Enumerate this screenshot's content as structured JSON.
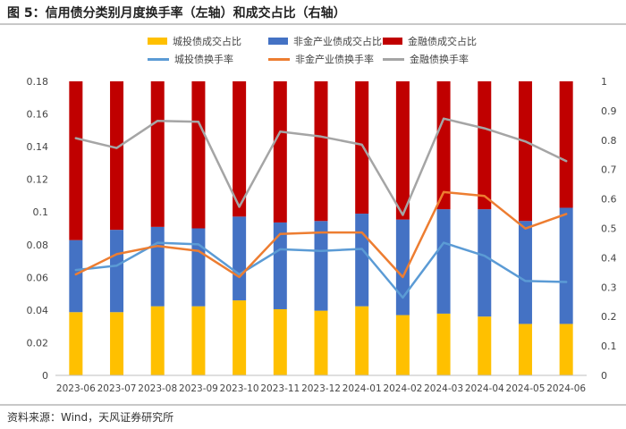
{
  "header": {
    "title": "图 5：信用债分类别月度换手率（左轴）和成交占比（右轴）"
  },
  "footer": {
    "source": "资料来源：Wind，天风证券研究所"
  },
  "colors": {
    "chengtou_bar": "#FFC000",
    "feijinrong_bar": "#4472C4",
    "jinrong_bar": "#C00000",
    "chengtou_line": "#5B9BD5",
    "feijinrong_line": "#ED7D31",
    "jinrong_line": "#A5A5A5"
  },
  "chart_data": {
    "type": "bar",
    "title": "信用债分类别月度换手率（左轴）和成交占比（右轴）",
    "categories": [
      "2023-06",
      "2023-07",
      "2023-08",
      "2023-09",
      "2023-10",
      "2023-11",
      "2023-12",
      "2024-01",
      "2024-02",
      "2024-03",
      "2024-04",
      "2024-05",
      "2024-06"
    ],
    "left_axis": {
      "ylim": [
        0,
        0.18
      ],
      "ticks": [
        "0",
        "0.02",
        "0.04",
        "0.06",
        "0.08",
        "0.1",
        "0.12",
        "0.14",
        "0.16",
        "0.18"
      ]
    },
    "right_axis": {
      "ylim": [
        0,
        1
      ],
      "ticks": [
        "0",
        "0.1",
        "0.2",
        "0.3",
        "0.4",
        "0.5",
        "0.6",
        "0.7",
        "0.8",
        "0.9",
        "1"
      ]
    },
    "stacked_bars_right_axis": [
      {
        "name": "城投债成交占比",
        "values": [
          0.215,
          0.215,
          0.235,
          0.235,
          0.255,
          0.225,
          0.22,
          0.235,
          0.205,
          0.21,
          0.2,
          0.175,
          0.175
        ]
      },
      {
        "name": "非金产业债成交占比",
        "values": [
          0.245,
          0.28,
          0.27,
          0.265,
          0.285,
          0.295,
          0.305,
          0.315,
          0.325,
          0.355,
          0.365,
          0.35,
          0.395
        ]
      },
      {
        "name": "金融债成交占比",
        "values": [
          0.54,
          0.505,
          0.495,
          0.5,
          0.46,
          0.48,
          0.475,
          0.45,
          0.47,
          0.435,
          0.435,
          0.475,
          0.43
        ]
      }
    ],
    "lines_left_axis": [
      {
        "name": "城投债换手率",
        "values": [
          0.0645,
          0.0672,
          0.0812,
          0.0802,
          0.0618,
          0.0772,
          0.0762,
          0.0774,
          0.0476,
          0.0812,
          0.0732,
          0.0578,
          0.0572
        ]
      },
      {
        "name": "非金产业债换手率",
        "values": [
          0.0618,
          0.0742,
          0.0792,
          0.0762,
          0.0602,
          0.0866,
          0.0875,
          0.0875,
          0.0602,
          0.1122,
          0.1098,
          0.0899,
          0.0988
        ]
      },
      {
        "name": "金融债换手率",
        "values": [
          0.1452,
          0.1392,
          0.1558,
          0.1552,
          0.1032,
          0.1492,
          0.1462,
          0.1412,
          0.0982,
          0.1572,
          0.1512,
          0.1432,
          0.1312
        ]
      }
    ],
    "legend": [
      "城投债成交占比",
      "非金产业债成交占比",
      "金融债成交占比",
      "城投债换手率",
      "非金产业债换手率",
      "金融债换手率"
    ],
    "legend_position": "top",
    "grid": false
  }
}
